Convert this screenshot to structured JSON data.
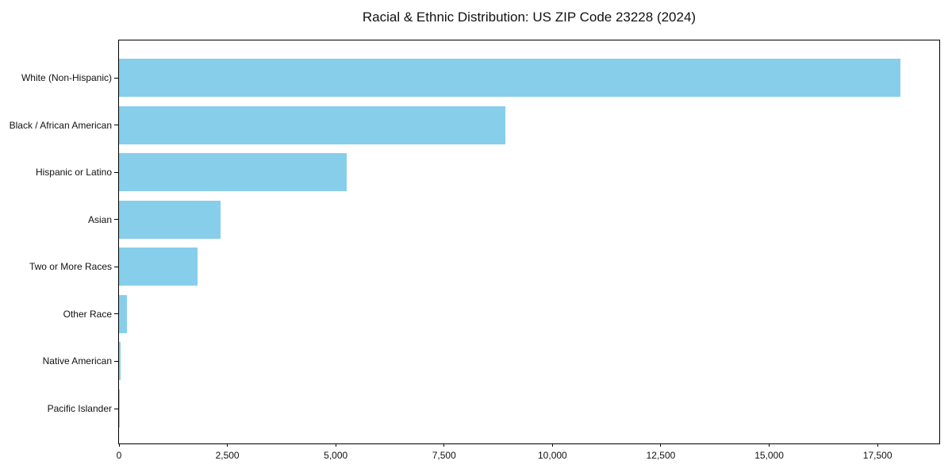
{
  "figure": {
    "background_color": "#ffffff",
    "text_color": "#111111",
    "axis_color": "#000000"
  },
  "chart_data": {
    "type": "bar",
    "orientation": "horizontal",
    "title": "Racial & Ethnic Distribution: US ZIP Code 23228 (2024)",
    "xlabel": "",
    "ylabel": "",
    "categories": [
      "White (Non-Hispanic)",
      "Black / African American",
      "Hispanic or Latino",
      "Asian",
      "Two or More Races",
      "Other Race",
      "Native American",
      "Pacific Islander"
    ],
    "values": [
      18030,
      8915,
      5260,
      2340,
      1810,
      180,
      30,
      10
    ],
    "xlim": [
      0,
      18925
    ],
    "x_ticks": [
      0,
      2500,
      5000,
      7500,
      10000,
      12500,
      15000,
      17500
    ],
    "x_tick_labels": [
      "0",
      "2,500",
      "5,000",
      "7,500",
      "10,000",
      "12,500",
      "15,000",
      "17,500"
    ],
    "bar_color": "#87CEEB",
    "grid": false,
    "legend": null
  }
}
